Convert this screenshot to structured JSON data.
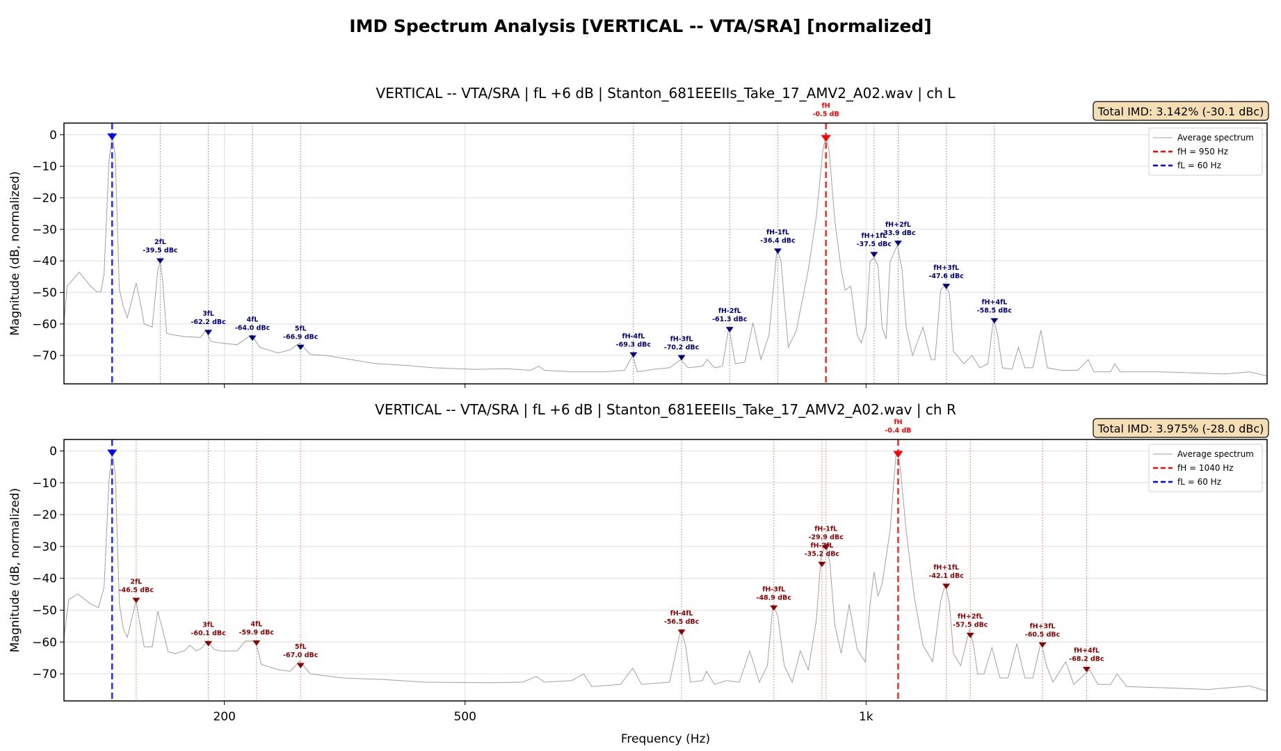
{
  "title": "IMD Spectrum Analysis  [VERTICAL -- VTA/SRA]  [normalized]",
  "colors": {
    "fH": "#ff0000",
    "fL": "#0000ff",
    "top_markers": "#00007f",
    "bottom_markers": "#8b0000",
    "spectrum": "#a0a0a0",
    "imd_box": "#f5deb3"
  },
  "chart_data": [
    {
      "type": "line",
      "title": "VERTICAL -- VTA/SRA  |  fL +6 dB  |  Stanton_681EEEIIs_Take_17_AMV2_A02.wav  |  ch L",
      "xlabel": "",
      "ylabel": "Magnitude (dB, normalized)",
      "xlim": [
        0,
        1500
      ],
      "ylim": [
        -79,
        3.7
      ],
      "xticks": [
        200,
        500,
        1000
      ],
      "xtick_labels": [],
      "yticks": [
        0,
        -10,
        -20,
        -30,
        -40,
        -50,
        -60,
        -70
      ],
      "ytick_labels": [
        "0",
        "−10",
        "−20",
        "−30",
        "−40",
        "−50",
        "−60",
        "−70"
      ],
      "grid": true,
      "legend_position": "top-right",
      "legend": [
        "Average spectrum",
        "fH = 950 Hz",
        "fL = 60 Hz"
      ],
      "imd_text": "Total IMD: 3.142% (-30.1 dBc)",
      "fL": {
        "hz": 60,
        "db": 0
      },
      "fH": {
        "hz": 950,
        "db": -0.5,
        "label": "fH",
        "value": "-0.5 dB"
      },
      "markers": [
        {
          "label": "2fL",
          "hz": 120,
          "dbc": -39.5,
          "value": "-39.5 dBc"
        },
        {
          "label": "3fL",
          "hz": 180,
          "dbc": -62.2,
          "value": "-62.2 dBc"
        },
        {
          "label": "4fL",
          "hz": 235,
          "dbc": -64.0,
          "value": "-64.0 dBc"
        },
        {
          "label": "5fL",
          "hz": 295,
          "dbc": -66.9,
          "value": "-66.9 dBc"
        },
        {
          "label": "fH-4fL",
          "hz": 710,
          "dbc": -69.3,
          "value": "-69.3 dBc"
        },
        {
          "label": "fH-3fL",
          "hz": 770,
          "dbc": -70.2,
          "value": "-70.2 dBc"
        },
        {
          "label": "fH-2fL",
          "hz": 830,
          "dbc": -61.3,
          "value": "-61.3 dBc"
        },
        {
          "label": "fH-1fL",
          "hz": 890,
          "dbc": -36.4,
          "value": "-36.4 dBc"
        },
        {
          "label": "fH+1fL",
          "hz": 1010,
          "dbc": -37.5,
          "value": "-37.5 dBc"
        },
        {
          "label": "fH+2fL",
          "hz": 1040,
          "dbc": -33.9,
          "value": "-33.9 dBc"
        },
        {
          "label": "fH+3fL",
          "hz": 1100,
          "dbc": -47.6,
          "value": "-47.6 dBc"
        },
        {
          "label": "fH+4fL",
          "hz": 1160,
          "dbc": -58.5,
          "value": "-58.5 dBc"
        }
      ],
      "spectrum": [
        [
          0,
          -59.6
        ],
        [
          4,
          -48
        ],
        [
          19,
          -43.6
        ],
        [
          33,
          -48
        ],
        [
          41,
          -49.8
        ],
        [
          46,
          -49.8
        ],
        [
          50,
          -44
        ],
        [
          56,
          -9
        ],
        [
          60,
          0
        ],
        [
          64,
          -6.5
        ],
        [
          69,
          -49
        ],
        [
          74,
          -54.5
        ],
        [
          79,
          -58
        ],
        [
          90,
          -47
        ],
        [
          95,
          -53
        ],
        [
          100,
          -60
        ],
        [
          110,
          -61
        ],
        [
          117,
          -43
        ],
        [
          120,
          -40
        ],
        [
          123,
          -46.5
        ],
        [
          128,
          -63
        ],
        [
          137,
          -63.5
        ],
        [
          150,
          -64
        ],
        [
          170,
          -64.3
        ],
        [
          177,
          -62
        ],
        [
          183,
          -65.6
        ],
        [
          195,
          -66
        ],
        [
          216,
          -66.6
        ],
        [
          226,
          -64.8
        ],
        [
          234,
          -63.5
        ],
        [
          244,
          -67.4
        ],
        [
          267,
          -69.2
        ],
        [
          282,
          -68.2
        ],
        [
          294,
          -66
        ],
        [
          307,
          -69.7
        ],
        [
          327,
          -70
        ],
        [
          358,
          -71.3
        ],
        [
          389,
          -72.6
        ],
        [
          430,
          -73.2
        ],
        [
          460,
          -73.9
        ],
        [
          511,
          -74.4
        ],
        [
          552,
          -74.2
        ],
        [
          582,
          -74.7
        ],
        [
          592,
          -73.4
        ],
        [
          599,
          -74.7
        ],
        [
          633,
          -75.2
        ],
        [
          674,
          -75.2
        ],
        [
          699,
          -74.7
        ],
        [
          709,
          -70
        ],
        [
          715,
          -75.2
        ],
        [
          735,
          -74.4
        ],
        [
          755,
          -73.9
        ],
        [
          769,
          -71.3
        ],
        [
          778,
          -73.9
        ],
        [
          796,
          -73.4
        ],
        [
          802,
          -71.3
        ],
        [
          811,
          -73.9
        ],
        [
          821,
          -73.4
        ],
        [
          829,
          -61
        ],
        [
          837,
          -72.6
        ],
        [
          849,
          -72.1
        ],
        [
          859,
          -59.6
        ],
        [
          869,
          -71.3
        ],
        [
          879,
          -63.5
        ],
        [
          889,
          -36.3
        ],
        [
          894,
          -40.2
        ],
        [
          903,
          -67.4
        ],
        [
          913,
          -62.2
        ],
        [
          928,
          -42.8
        ],
        [
          938,
          -26
        ],
        [
          946,
          -5.2
        ],
        [
          950,
          0
        ],
        [
          954,
          -5.2
        ],
        [
          961,
          -27.2
        ],
        [
          969,
          -42.8
        ],
        [
          974,
          -49.3
        ],
        [
          981,
          -48
        ],
        [
          989,
          -63.5
        ],
        [
          994,
          -66
        ],
        [
          1000,
          -60.8
        ],
        [
          1005,
          -40.2
        ],
        [
          1010,
          -39
        ],
        [
          1015,
          -41.5
        ],
        [
          1020,
          -61
        ],
        [
          1025,
          -64.8
        ],
        [
          1030,
          -40.2
        ],
        [
          1039,
          -35
        ],
        [
          1045,
          -42.8
        ],
        [
          1050,
          -61
        ],
        [
          1058,
          -70
        ],
        [
          1071,
          -61
        ],
        [
          1081,
          -71.3
        ],
        [
          1086,
          -71.3
        ],
        [
          1093,
          -49.3
        ],
        [
          1099,
          -47.5
        ],
        [
          1104,
          -50.6
        ],
        [
          1109,
          -68.7
        ],
        [
          1122,
          -72.6
        ],
        [
          1132,
          -70
        ],
        [
          1142,
          -73.9
        ],
        [
          1152,
          -72.6
        ],
        [
          1159,
          -58.3
        ],
        [
          1164,
          -63.5
        ],
        [
          1170,
          -73.9
        ],
        [
          1182,
          -74.4
        ],
        [
          1190,
          -67.4
        ],
        [
          1198,
          -73.9
        ],
        [
          1208,
          -73.9
        ],
        [
          1218,
          -62
        ],
        [
          1226,
          -73.9
        ],
        [
          1243,
          -74.7
        ],
        [
          1264,
          -74.7
        ],
        [
          1277,
          -71.3
        ],
        [
          1284,
          -75.2
        ],
        [
          1305,
          -75.2
        ],
        [
          1310,
          -72.6
        ],
        [
          1317,
          -75.2
        ],
        [
          1345,
          -75.2
        ],
        [
          1366,
          -75.2
        ],
        [
          1396,
          -75.4
        ],
        [
          1447,
          -75.9
        ],
        [
          1478,
          -75.2
        ],
        [
          1500,
          -76.5
        ]
      ]
    },
    {
      "type": "line",
      "title": "VERTICAL -- VTA/SRA  |  fL +6 dB  |  Stanton_681EEEIIs_Take_17_AMV2_A02.wav  |  ch R",
      "xlabel": "Frequency (Hz)",
      "ylabel": "Magnitude (dB, normalized)",
      "xlim": [
        0,
        1500
      ],
      "ylim": [
        -78.5,
        3.6
      ],
      "xticks": [
        200,
        500,
        1000
      ],
      "xtick_labels": [
        "200",
        "500",
        "1k"
      ],
      "yticks": [
        0,
        -10,
        -20,
        -30,
        -40,
        -50,
        -60,
        -70
      ],
      "ytick_labels": [
        "0",
        "−10",
        "−20",
        "−30",
        "−40",
        "−50",
        "−60",
        "−70"
      ],
      "grid": true,
      "legend_position": "top-right",
      "legend": [
        "Average spectrum",
        "fH = 1040 Hz",
        "fL = 60 Hz"
      ],
      "imd_text": "Total IMD: 3.975% (-28.0 dBc)",
      "fL": {
        "hz": 60,
        "db": 0
      },
      "fH": {
        "hz": 1040,
        "db": -0.4,
        "label": "fH",
        "value": "-0.4 dB"
      },
      "markers": [
        {
          "label": "2fL",
          "hz": 90,
          "dbc": -46.5,
          "value": "-46.5 dBc"
        },
        {
          "label": "3fL",
          "hz": 180,
          "dbc": -60.1,
          "value": "-60.1 dBc"
        },
        {
          "label": "4fL",
          "hz": 240,
          "dbc": -59.9,
          "value": "-59.9 dBc"
        },
        {
          "label": "5fL",
          "hz": 295,
          "dbc": -67.0,
          "value": "-67.0 dBc"
        },
        {
          "label": "fH-4fL",
          "hz": 770,
          "dbc": -56.5,
          "value": "-56.5 dBc"
        },
        {
          "label": "fH-3fL",
          "hz": 885,
          "dbc": -48.9,
          "value": "-48.9 dBc"
        },
        {
          "label": "fH-2fL",
          "hz": 945,
          "dbc": -35.2,
          "value": "-35.2 dBc"
        },
        {
          "label": "fH-1fL",
          "hz": 950,
          "dbc": -29.9,
          "value": "-29.9 dBc"
        },
        {
          "label": "fH+1fL",
          "hz": 1100,
          "dbc": -42.1,
          "value": "-42.1 dBc"
        },
        {
          "label": "fH+2fL",
          "hz": 1130,
          "dbc": -57.5,
          "value": "-57.5 dBc"
        },
        {
          "label": "fH+3fL",
          "hz": 1220,
          "dbc": -60.5,
          "value": "-60.5 dBc"
        },
        {
          "label": "fH+4fL",
          "hz": 1275,
          "dbc": -68.2,
          "value": "-68.2 dBc"
        }
      ],
      "spectrum": [
        [
          0,
          -58.5
        ],
        [
          6,
          -46.7
        ],
        [
          17,
          -44.9
        ],
        [
          33,
          -48
        ],
        [
          43,
          -49.2
        ],
        [
          50,
          -42.8
        ],
        [
          56,
          -9.7
        ],
        [
          60,
          0
        ],
        [
          64,
          -7.2
        ],
        [
          69,
          -48
        ],
        [
          74,
          -55.9
        ],
        [
          79,
          -58.5
        ],
        [
          90,
          -47
        ],
        [
          94,
          -53.3
        ],
        [
          100,
          -61.5
        ],
        [
          110,
          -61.5
        ],
        [
          117,
          -50.3
        ],
        [
          124,
          -57.2
        ],
        [
          130,
          -63.1
        ],
        [
          139,
          -63.6
        ],
        [
          150,
          -62.8
        ],
        [
          157,
          -61
        ],
        [
          165,
          -62.8
        ],
        [
          172,
          -61.8
        ],
        [
          179,
          -59.7
        ],
        [
          187,
          -62.3
        ],
        [
          195,
          -62.8
        ],
        [
          216,
          -62.8
        ],
        [
          226,
          -59.7
        ],
        [
          239,
          -59.7
        ],
        [
          246,
          -67
        ],
        [
          267,
          -68.7
        ],
        [
          282,
          -69.2
        ],
        [
          294,
          -66
        ],
        [
          307,
          -70
        ],
        [
          348,
          -71.3
        ],
        [
          399,
          -71.8
        ],
        [
          450,
          -72.6
        ],
        [
          531,
          -72.8
        ],
        [
          572,
          -72.6
        ],
        [
          589,
          -70.8
        ],
        [
          599,
          -72.6
        ],
        [
          633,
          -72.1
        ],
        [
          648,
          -70
        ],
        [
          658,
          -74
        ],
        [
          694,
          -73.3
        ],
        [
          709,
          -68.2
        ],
        [
          720,
          -73.3
        ],
        [
          755,
          -72.6
        ],
        [
          769,
          -56
        ],
        [
          775,
          -61
        ],
        [
          781,
          -72.6
        ],
        [
          796,
          -72.1
        ],
        [
          801,
          -69.2
        ],
        [
          811,
          -73.3
        ],
        [
          826,
          -72.1
        ],
        [
          842,
          -72.6
        ],
        [
          855,
          -62.8
        ],
        [
          867,
          -72.6
        ],
        [
          877,
          -67.4
        ],
        [
          884,
          -48.2
        ],
        [
          890,
          -52
        ],
        [
          898,
          -67.4
        ],
        [
          908,
          -72.6
        ],
        [
          918,
          -62.8
        ],
        [
          928,
          -68.7
        ],
        [
          938,
          -53.3
        ],
        [
          944,
          -32.8
        ],
        [
          950,
          -29
        ],
        [
          955,
          -35.4
        ],
        [
          961,
          -54.6
        ],
        [
          969,
          -63.6
        ],
        [
          979,
          -48.2
        ],
        [
          989,
          -62.3
        ],
        [
          999,
          -66.2
        ],
        [
          1005,
          -48.2
        ],
        [
          1010,
          -38
        ],
        [
          1015,
          -45.6
        ],
        [
          1020,
          -41.8
        ],
        [
          1030,
          -25
        ],
        [
          1037,
          -2
        ],
        [
          1039,
          0
        ],
        [
          1043,
          -5.9
        ],
        [
          1050,
          -25
        ],
        [
          1060,
          -45.6
        ],
        [
          1071,
          -61
        ],
        [
          1083,
          -66.2
        ],
        [
          1093,
          -47
        ],
        [
          1099,
          -41.8
        ],
        [
          1104,
          -48.2
        ],
        [
          1109,
          -63.6
        ],
        [
          1118,
          -67.4
        ],
        [
          1129,
          -56
        ],
        [
          1134,
          -61
        ],
        [
          1139,
          -70
        ],
        [
          1147,
          -70
        ],
        [
          1157,
          -61.8
        ],
        [
          1167,
          -71.3
        ],
        [
          1177,
          -71.3
        ],
        [
          1188,
          -60.5
        ],
        [
          1198,
          -71.3
        ],
        [
          1208,
          -71.3
        ],
        [
          1218,
          -60
        ],
        [
          1225,
          -67.4
        ],
        [
          1233,
          -72.6
        ],
        [
          1249,
          -66.2
        ],
        [
          1259,
          -73.3
        ],
        [
          1273,
          -70
        ],
        [
          1279,
          -68.7
        ],
        [
          1289,
          -73.3
        ],
        [
          1305,
          -73.3
        ],
        [
          1313,
          -70
        ],
        [
          1325,
          -74
        ],
        [
          1376,
          -74.4
        ],
        [
          1427,
          -74.9
        ],
        [
          1478,
          -73.8
        ],
        [
          1500,
          -75.4
        ]
      ]
    }
  ]
}
